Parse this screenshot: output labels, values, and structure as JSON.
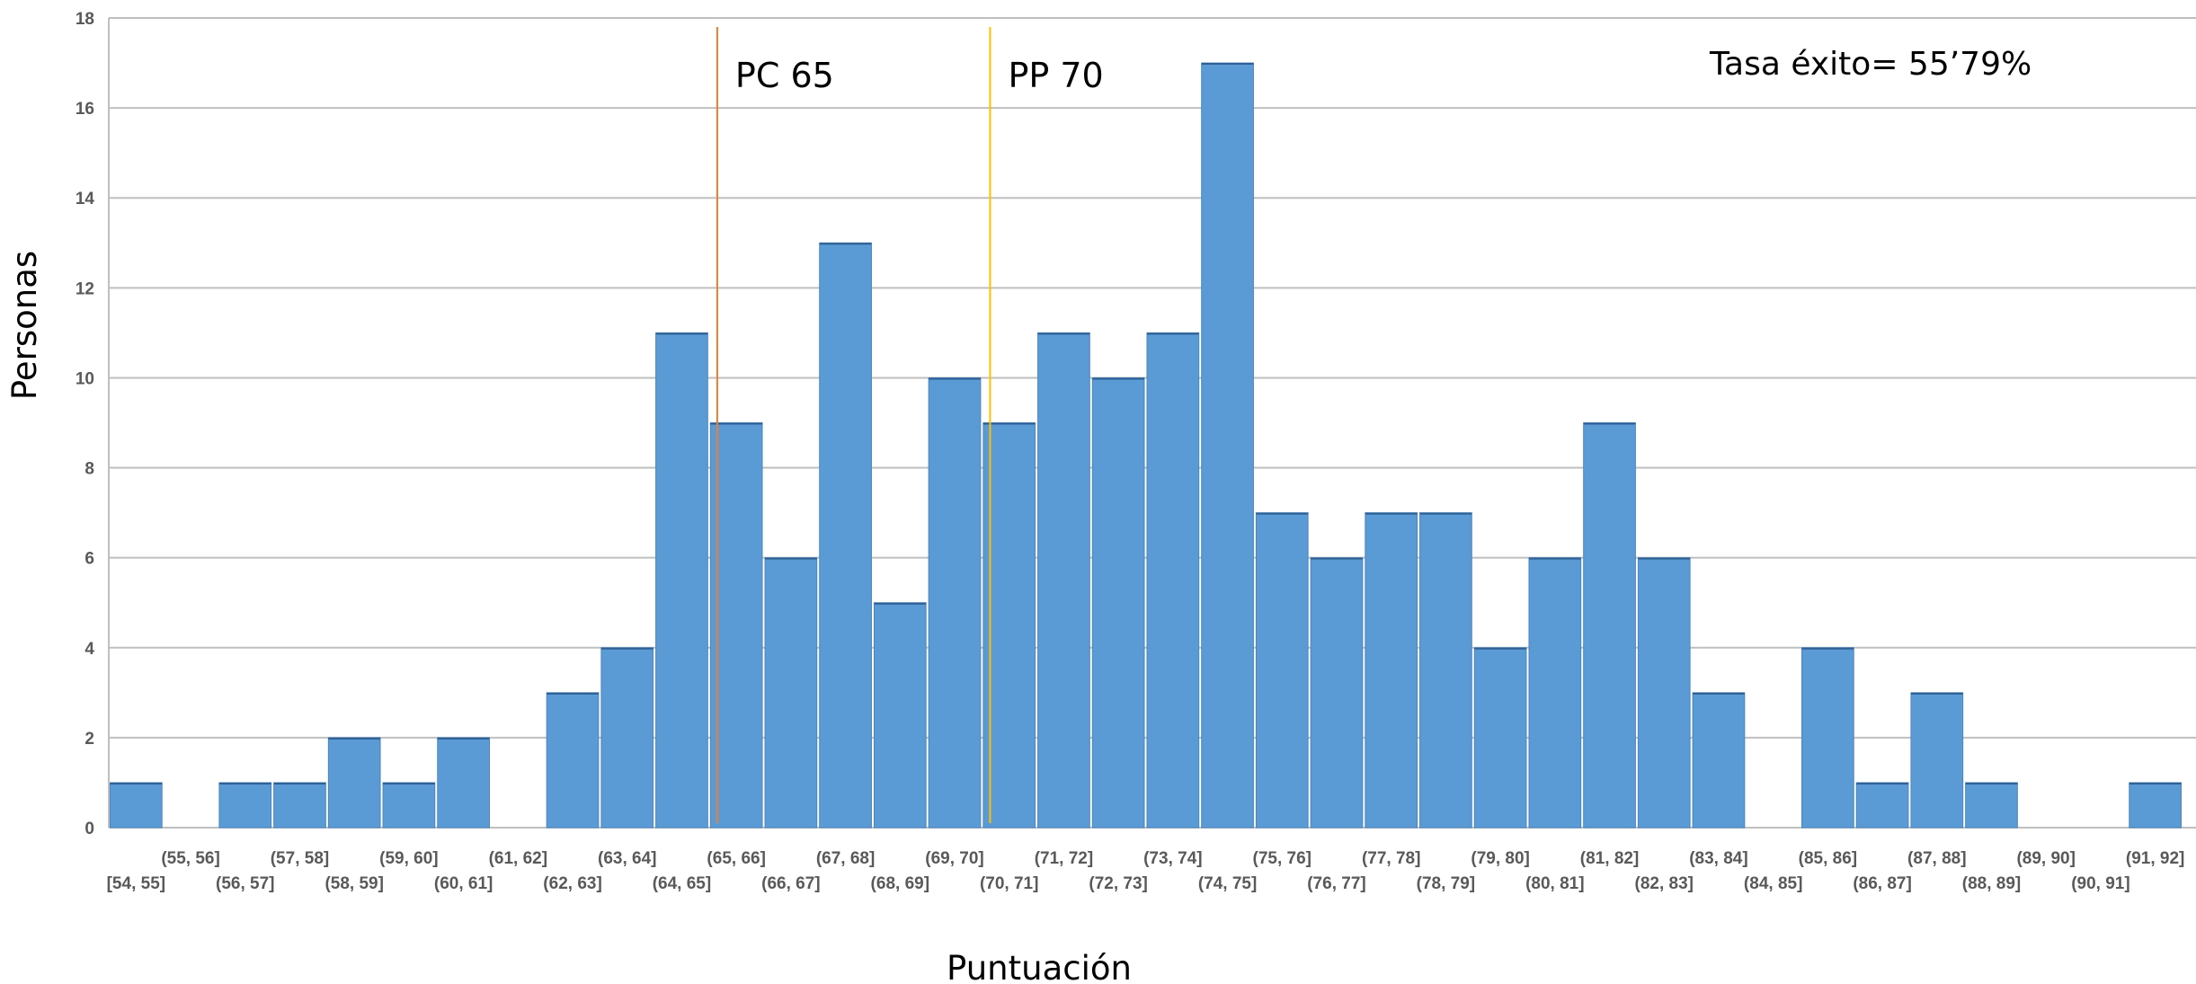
{
  "chart_data": {
    "type": "bar",
    "title": "",
    "xlabel": "Puntuación",
    "ylabel": "Personas",
    "ylim": [
      0,
      18
    ],
    "yticks": [
      0,
      2,
      4,
      6,
      8,
      10,
      12,
      14,
      16,
      18
    ],
    "grid": true,
    "categories": [
      "[54, 55]",
      "(55, 56]",
      "(56, 57]",
      "(57, 58]",
      "(58, 59]",
      "(59, 60]",
      "(60, 61]",
      "(61, 62]",
      "(62, 63]",
      "(63, 64]",
      "(64, 65]",
      "(65, 66]",
      "(66, 67]",
      "(67, 68]",
      "(68, 69]",
      "(69, 70]",
      "(70, 71]",
      "(71, 72]",
      "(72, 73]",
      "(73, 74]",
      "(74, 75]",
      "(75, 76]",
      "(76, 77]",
      "(77, 78]",
      "(78, 79]",
      "(79, 80]",
      "(80, 81]",
      "(81, 82]",
      "(82, 83]",
      "(83, 84]",
      "(84, 85]",
      "(85, 86]",
      "(86, 87]",
      "(87, 88]",
      "(88, 89]",
      "(89, 90]",
      "(90, 91]",
      "(91, 92]"
    ],
    "values": [
      1,
      0,
      1,
      1,
      2,
      1,
      2,
      0,
      3,
      4,
      11,
      9,
      6,
      13,
      5,
      10,
      9,
      11,
      10,
      11,
      17,
      7,
      6,
      7,
      7,
      4,
      6,
      9,
      6,
      3,
      0,
      4,
      1,
      3,
      1,
      0,
      0,
      1
    ],
    "bar_color": "#5b9bd5",
    "reference_lines": [
      {
        "label": "PC 65",
        "x": 65,
        "color": "#ed7d31"
      },
      {
        "label": "PP 70",
        "x": 70,
        "color": "#ffc000"
      }
    ],
    "annotation": "Tasa éxito= 55’79%"
  }
}
